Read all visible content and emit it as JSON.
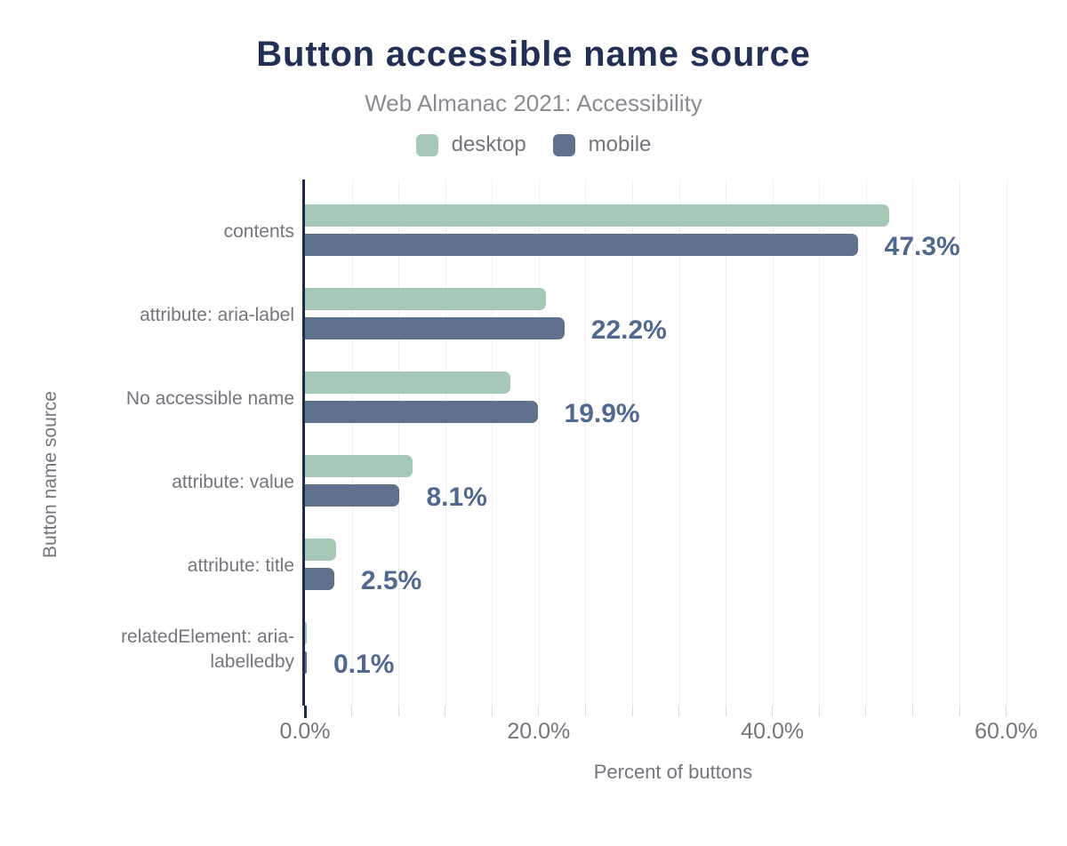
{
  "header": {
    "title": "Button accessible name source",
    "subtitle": "Web Almanac 2021: Accessibility"
  },
  "legend": {
    "items": [
      {
        "label": "desktop",
        "color": "#a5c8b7"
      },
      {
        "label": "mobile",
        "color": "#5f718d"
      }
    ]
  },
  "chart_data": {
    "type": "bar",
    "orientation": "horizontal",
    "title": "Button accessible name source",
    "subtitle": "Web Almanac 2021: Accessibility",
    "xlabel": "Percent of buttons",
    "ylabel": "Button name source",
    "categories": [
      "contents",
      "attribute: aria-label",
      "No accessible name",
      "attribute: value",
      "attribute: title",
      "relatedElement: aria-labelledby"
    ],
    "series": [
      {
        "name": "desktop",
        "color": "#a5c8b7",
        "values": [
          50.0,
          20.6,
          17.6,
          9.2,
          2.7,
          0.1
        ]
      },
      {
        "name": "mobile",
        "color": "#5f718d",
        "values": [
          47.3,
          22.2,
          19.9,
          8.1,
          2.5,
          0.1
        ]
      }
    ],
    "value_labels": [
      "47.3%",
      "22.2%",
      "19.9%",
      "8.1%",
      "2.5%",
      "0.1%"
    ],
    "x_ticks": [
      {
        "value": 0,
        "label": "0.0%"
      },
      {
        "value": 20,
        "label": "20.0%"
      },
      {
        "value": 40,
        "label": "40.0%"
      },
      {
        "value": 60,
        "label": "60.0%"
      }
    ],
    "xlim": [
      0,
      63
    ],
    "minor_grid_step": 4,
    "grid": true,
    "legend_position": "top"
  },
  "colors": {
    "title": "#213054",
    "subtitle": "#8b8b93",
    "axis_text": "#75757d",
    "value_label": "#51688f",
    "axis_line": "#1b2a4a",
    "gridline": "#f0f0f1"
  }
}
